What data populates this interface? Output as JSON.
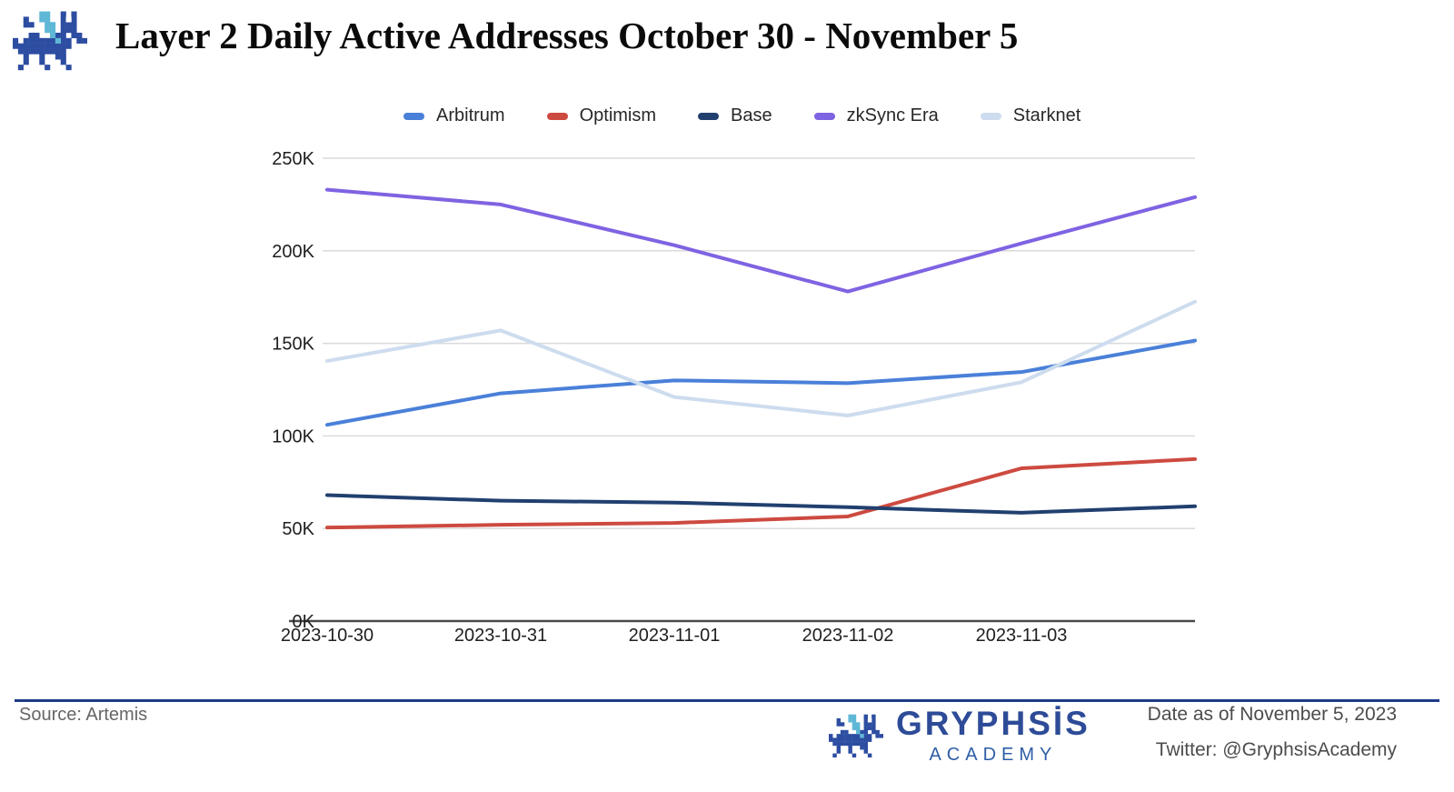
{
  "header": {
    "title": "Layer 2 Daily Active Addresses October 30 - November 5"
  },
  "chart_data": {
    "type": "line",
    "x": [
      "2023-10-30",
      "2023-10-31",
      "2023-11-01",
      "2023-11-02",
      "2023-11-03",
      ""
    ],
    "series": [
      {
        "name": "Arbitrum",
        "color": "#4a80d9",
        "values": [
          106000,
          123000,
          130000,
          128500,
          134500,
          151500
        ]
      },
      {
        "name": "Optimism",
        "color": "#cd4a40",
        "values": [
          50500,
          52000,
          53000,
          56500,
          82500,
          87500
        ]
      },
      {
        "name": "Base",
        "color": "#21406f",
        "values": [
          68000,
          65000,
          64000,
          61500,
          58500,
          62000
        ]
      },
      {
        "name": "zkSync Era",
        "color": "#7f63e2",
        "values": [
          233000,
          225000,
          203000,
          178000,
          204000,
          229000
        ]
      },
      {
        "name": "Starknet",
        "color": "#cddcee",
        "values": [
          140500,
          157000,
          121000,
          111000,
          129000,
          172500
        ]
      }
    ],
    "title": "Layer 2 Daily Active Addresses October 30 - November 5",
    "xlabel": "",
    "ylabel": "",
    "ylim": [
      0,
      250000
    ],
    "y_ticks": [
      "0K",
      "50K",
      "100K",
      "150K",
      "200K",
      "250K"
    ],
    "grid": true,
    "legend_position": "top"
  },
  "footer": {
    "source": "Source: Artemis",
    "brand_name": "GRYPHSİS",
    "brand_sub": "ACADEMY",
    "date_line": "Date as of November 5, 2023",
    "twitter_line": "Twitter: @GryphsisAcademy"
  }
}
